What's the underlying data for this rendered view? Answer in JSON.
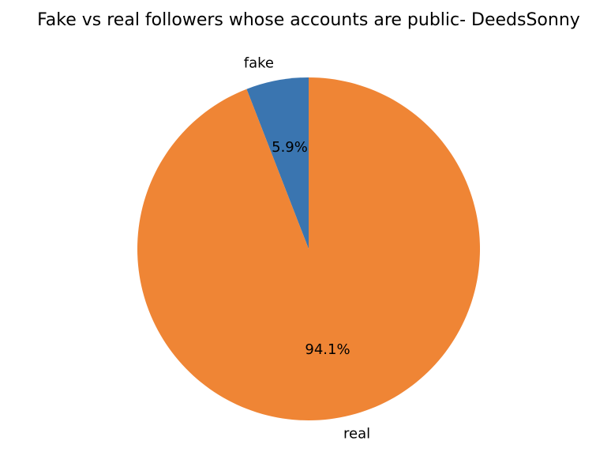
{
  "chart_data": {
    "type": "pie",
    "title": "Fake vs real followers whose accounts are public- DeedsSonny",
    "slices": [
      {
        "label": "fake",
        "value": 5.9,
        "pct_label": "5.9%",
        "color": "#3a75b0"
      },
      {
        "label": "real",
        "value": 94.1,
        "pct_label": "94.1%",
        "color": "#ef8535"
      }
    ],
    "start_angle_deg": 90,
    "direction": "counterclockwise",
    "legend": "none"
  }
}
